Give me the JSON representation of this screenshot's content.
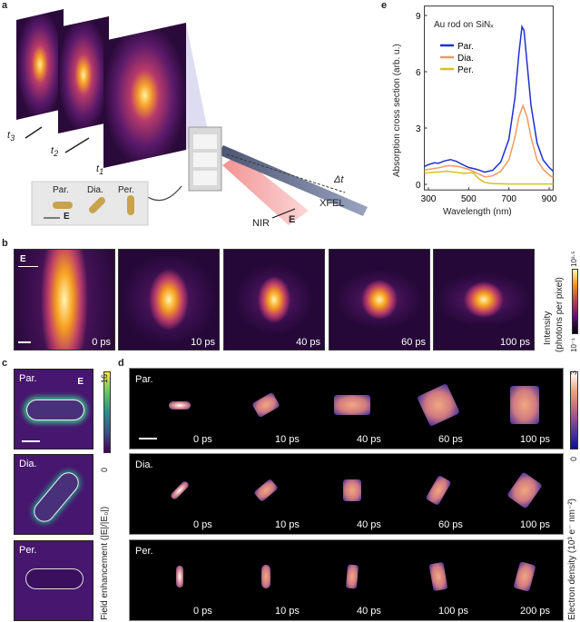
{
  "panel_labels": {
    "a": "a",
    "b": "b",
    "c": "c",
    "d": "d",
    "e": "e"
  },
  "panel_a": {
    "t3": "t",
    "t3_sub": "3",
    "t2": "t",
    "t2_sub": "2",
    "t1": "t",
    "t1_sub": "1",
    "par": "Par.",
    "dia": "Dia.",
    "per": "Per.",
    "e_field": "E",
    "nir": "NIR",
    "nir_e": "E",
    "xfel": "XFEL",
    "delta_t": "Δt"
  },
  "panel_b": {
    "e_field": "E",
    "times": [
      "0 ps",
      "10 ps",
      "40 ps",
      "60 ps",
      "100 ps"
    ],
    "colorbar_label_1": "Intensity",
    "colorbar_label_2": "(photons per pixel)",
    "cbar_min": "10⁻¹",
    "cbar_max": "10³·⁵",
    "colormap": "inferno"
  },
  "panel_c": {
    "rows": [
      "Par.",
      "Dia.",
      "Per."
    ],
    "e_field": "E",
    "colorbar_label": "Field enhancement (|E|/|E₀|)",
    "cbar_min": "0",
    "cbar_max": "16",
    "colormap": "viridis"
  },
  "panel_d": {
    "rows": [
      {
        "label": "Par.",
        "times": [
          "0 ps",
          "10 ps",
          "40 ps",
          "60 ps",
          "100 ps"
        ]
      },
      {
        "label": "Dia.",
        "times": [
          "0 ps",
          "10 ps",
          "40 ps",
          "60 ps",
          "100 ps"
        ]
      },
      {
        "label": "Per.",
        "times": [
          "0 ps",
          "10 ps",
          "40 ps",
          "100 ps",
          "200 ps"
        ]
      }
    ],
    "colorbar_label": "Electron density (10³ e⁻ nm⁻²)",
    "cbar_min": "0",
    "cbar_max": "3"
  },
  "chart_data": {
    "type": "line",
    "title": "Au rod on SiNₓ",
    "xlabel": "Wavelength (nm)",
    "ylabel": "Absorption cross section (arb. u.)",
    "xlim": [
      280,
      920
    ],
    "ylim": [
      -0.3,
      9.5
    ],
    "xticks": [
      300,
      500,
      700,
      900
    ],
    "yticks": [
      0,
      3,
      6,
      9
    ],
    "legend": "top-left",
    "series": [
      {
        "name": "Par.",
        "color": "#1f2fd0",
        "x": [
          280,
          300,
          330,
          350,
          380,
          410,
          440,
          470,
          500,
          540,
          580,
          620,
          660,
          700,
          730,
          750,
          765,
          775,
          790,
          810,
          840,
          870,
          900,
          920
        ],
        "y": [
          0.95,
          1.05,
          1.15,
          1.12,
          1.25,
          1.32,
          1.22,
          1.05,
          0.9,
          0.8,
          0.65,
          0.75,
          1.2,
          2.4,
          4.6,
          7.0,
          8.4,
          8.2,
          6.5,
          4.2,
          2.2,
          1.3,
          0.9,
          0.7
        ]
      },
      {
        "name": "Dia.",
        "color": "#f39a5e",
        "x": [
          280,
          300,
          350,
          400,
          450,
          500,
          540,
          580,
          620,
          660,
          700,
          730,
          750,
          770,
          790,
          810,
          840,
          870,
          900,
          920
        ],
        "y": [
          0.75,
          0.8,
          0.88,
          1.0,
          0.95,
          0.8,
          0.6,
          0.4,
          0.45,
          0.7,
          1.3,
          2.5,
          3.6,
          4.2,
          3.6,
          2.5,
          1.3,
          0.8,
          0.5,
          0.35
        ]
      },
      {
        "name": "Per.",
        "color": "#d4c21a",
        "x": [
          280,
          300,
          350,
          390,
          430,
          480,
          510,
          525,
          550,
          580,
          620,
          700,
          800,
          920
        ],
        "y": [
          0.6,
          0.62,
          0.66,
          0.7,
          0.65,
          0.58,
          0.62,
          0.6,
          0.3,
          0.1,
          0.04,
          0.02,
          0.02,
          0.02
        ]
      }
    ]
  }
}
